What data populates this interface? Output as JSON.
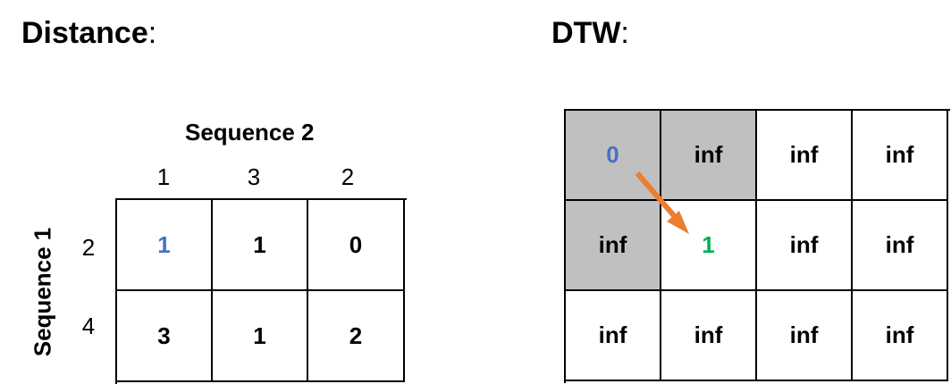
{
  "distance": {
    "heading": "Distance",
    "colon": ":",
    "col_axis_title": "Sequence 2",
    "row_axis_title": "Sequence 1",
    "col_ticks": [
      "1",
      "3",
      "2"
    ],
    "row_ticks": [
      "2",
      "4"
    ],
    "cells": [
      [
        "1",
        "1",
        "0"
      ],
      [
        "3",
        "1",
        "2"
      ]
    ],
    "highlight_cell": [
      0,
      0
    ],
    "highlight_color": "#4472c4"
  },
  "dtw": {
    "heading": "DTW",
    "colon": ":",
    "cells": [
      [
        "0",
        "inf",
        "inf",
        "inf"
      ],
      [
        "inf",
        "1",
        "inf",
        "inf"
      ],
      [
        "inf",
        "inf",
        "inf",
        "inf"
      ]
    ],
    "shaded_cells": [
      [
        0,
        0
      ],
      [
        0,
        1
      ],
      [
        1,
        0
      ]
    ],
    "shade_color": "#c0c0c0",
    "origin_cell_color": "#4472c4",
    "result_cell_color": "#00b050",
    "arrow_color": "#ed7d31"
  }
}
